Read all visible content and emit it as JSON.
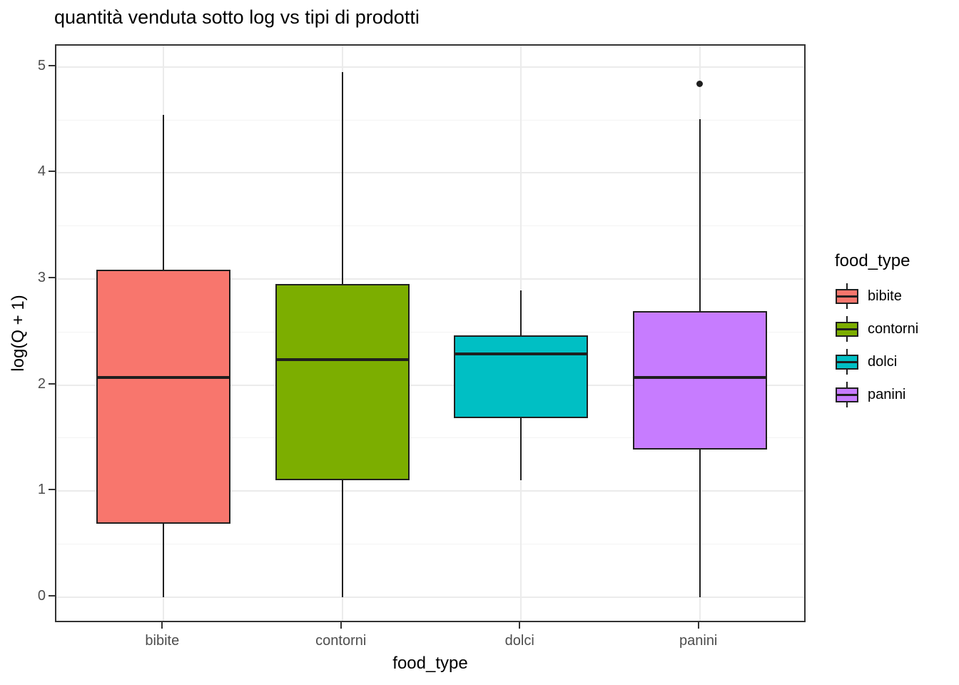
{
  "title": "quantità venduta sotto log vs tipi di prodotti",
  "chart_data": {
    "type": "boxplot",
    "title": "quantità venduta sotto log vs tipi di prodotti",
    "xlabel": "food_type",
    "ylabel": "log(Q + 1)",
    "categories": [
      "bibite",
      "contorni",
      "dolci",
      "panini"
    ],
    "ylim": [
      -0.25,
      5.2
    ],
    "y_ticks": [
      0,
      1,
      2,
      3,
      4,
      5
    ],
    "y_minor_ticks": [
      0.5,
      1.5,
      2.5,
      3.5,
      4.5
    ],
    "grid": true,
    "box_width_fraction": 0.75,
    "series": [
      {
        "name": "bibite",
        "color": "#F8766D",
        "whisker_low": 0,
        "q1": 0.69,
        "median": 2.07,
        "q3": 3.09,
        "whisker_high": 4.55,
        "outliers": []
      },
      {
        "name": "contorni",
        "color": "#7CAE00",
        "whisker_low": 0,
        "q1": 1.1,
        "median": 2.24,
        "q3": 2.95,
        "whisker_high": 4.95,
        "outliers": []
      },
      {
        "name": "dolci",
        "color": "#00BFC4",
        "whisker_low": 1.1,
        "q1": 1.69,
        "median": 2.29,
        "q3": 2.47,
        "whisker_high": 2.89,
        "outliers": []
      },
      {
        "name": "panini",
        "color": "#C77CFF",
        "whisker_low": 0,
        "q1": 1.39,
        "median": 2.07,
        "q3": 2.7,
        "whisker_high": 4.51,
        "outliers": [
          4.84
        ]
      }
    ],
    "legend": {
      "title": "food_type",
      "position": "right"
    },
    "style": {
      "box_stroke": "#1f1f1f",
      "panel_border": "#333333",
      "grid_major": "#ebebeb",
      "grid_minor": "#f3f3f3",
      "tick_label_color": "#4d4d4d",
      "background": "#ffffff"
    }
  }
}
